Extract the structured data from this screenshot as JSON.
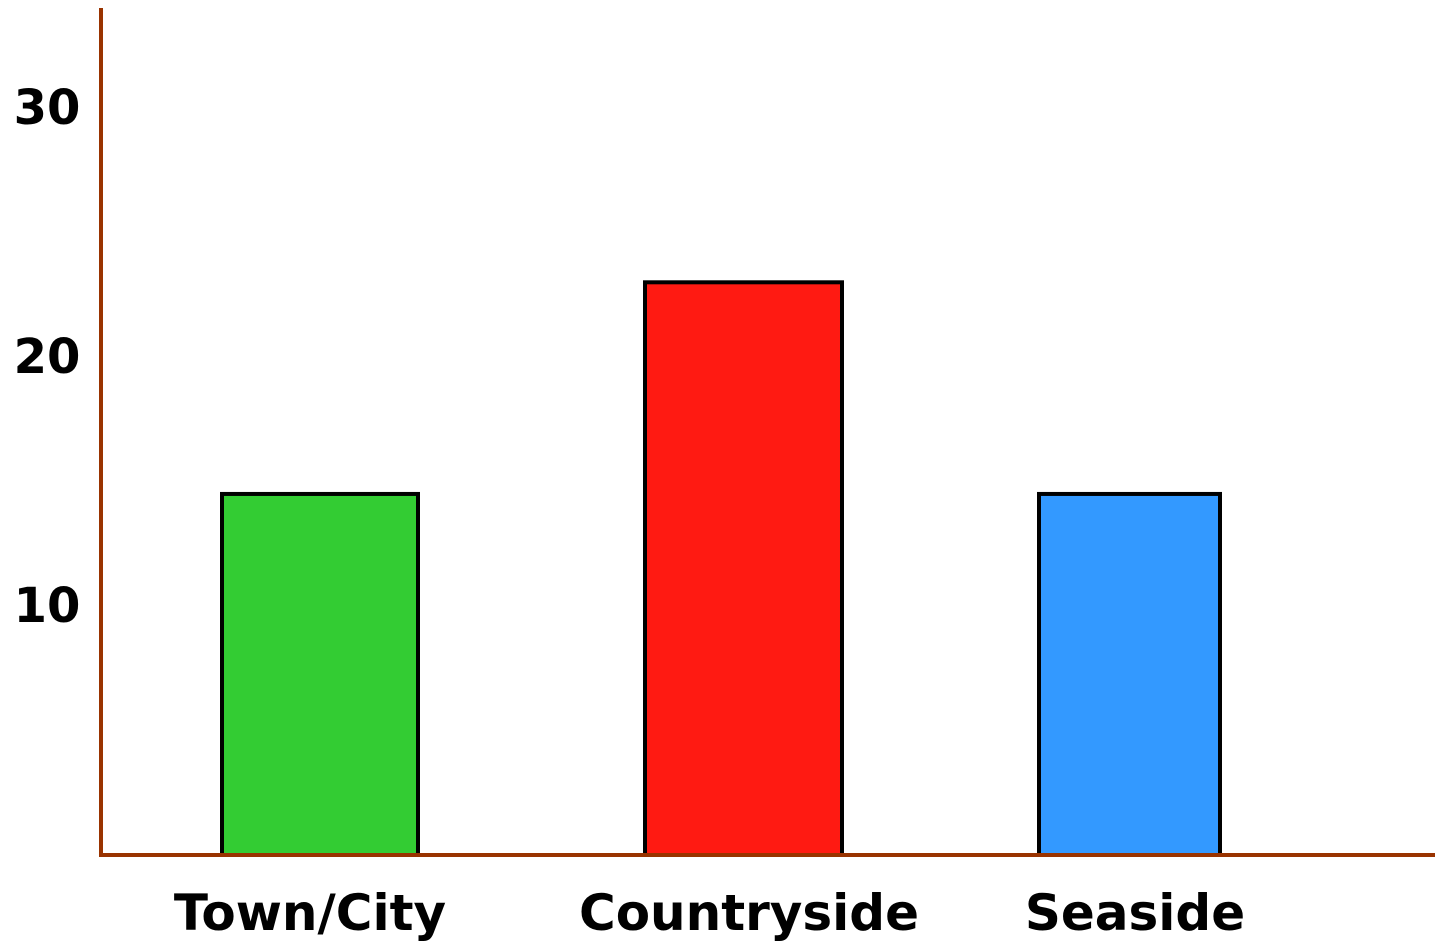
{
  "chart_data": {
    "type": "bar",
    "title": "",
    "xlabel": "",
    "ylabel": "",
    "categories": [
      "Town/City",
      "Countryside",
      "Seaside"
    ],
    "values": [
      14.5,
      23,
      14.5
    ],
    "bar_colors": [
      "#33cc33",
      "#ff1a12",
      "#3399ff"
    ],
    "bar_outline_color": "#000000",
    "axis_color": "#993300",
    "ylim": [
      0,
      34
    ],
    "yticks": [
      10,
      20,
      30
    ],
    "ytick_labels": [
      "10",
      "20",
      "30"
    ],
    "grid": false,
    "legend": "none"
  }
}
